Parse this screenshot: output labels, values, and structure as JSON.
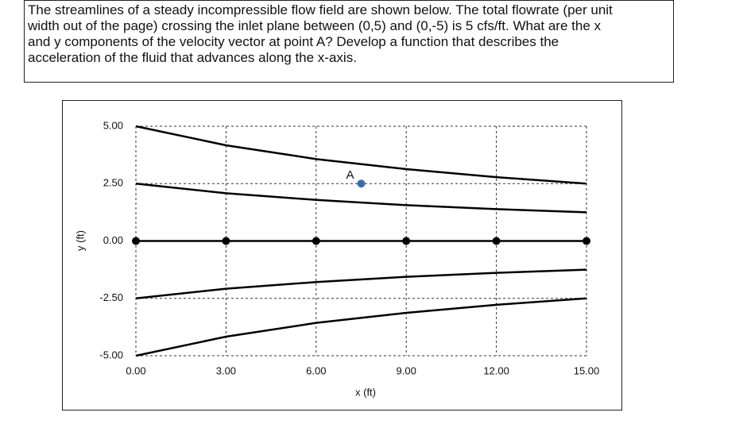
{
  "question": [
    "The streamlines of a steady incompressible flow field are shown below.  The total flowrate (per unit",
    "width out of the page) crossing the inlet plane between (0,5) and (0,-5) is 5 cfs/ft.  What are the x",
    "and y components of the velocity vector at point A?  Develop a function that describes the",
    "acceleration of the fluid that advances along the x-axis."
  ],
  "chart_data": {
    "type": "line",
    "x_label": "x (ft)",
    "y_label": "y (ft)",
    "x": [
      0,
      3,
      6,
      9,
      12,
      15
    ],
    "series": [
      {
        "color": "#000000",
        "values": [
          5,
          4.17,
          3.57,
          3.13,
          2.78,
          2.5
        ]
      },
      {
        "color": "#000000",
        "values": [
          2.5,
          2.08,
          1.79,
          1.56,
          1.39,
          1.25
        ]
      },
      {
        "color": "#000000",
        "values": [
          0,
          0,
          0,
          0,
          0,
          0
        ],
        "markers": true
      },
      {
        "color": "#000000",
        "values": [
          -2.5,
          -2.08,
          -1.79,
          -1.56,
          -1.39,
          -1.25
        ]
      },
      {
        "color": "#000000",
        "values": [
          -5,
          -4.17,
          -3.57,
          -3.13,
          -2.78,
          -2.5
        ]
      }
    ],
    "points": [
      {
        "label": "A",
        "x": 7.5,
        "y": 2.5,
        "color": "#3a6ea5"
      }
    ],
    "xlim": [
      0,
      15
    ],
    "ylim": [
      -5,
      5
    ],
    "xticks": [
      {
        "value": 0,
        "label": "0.00"
      },
      {
        "value": 3,
        "label": "3.00"
      },
      {
        "value": 6,
        "label": "6.00"
      },
      {
        "value": 9,
        "label": "9.00"
      },
      {
        "value": 12,
        "label": "12.00"
      },
      {
        "value": 15,
        "label": "15.00"
      }
    ],
    "yticks": [
      {
        "value": -5,
        "label": "-5.00"
      },
      {
        "value": -2.5,
        "label": "-2.50"
      },
      {
        "value": 0,
        "label": "0.00"
      },
      {
        "value": 2.5,
        "label": "2.50"
      },
      {
        "value": 5,
        "label": "5.00"
      }
    ],
    "grid": true
  }
}
